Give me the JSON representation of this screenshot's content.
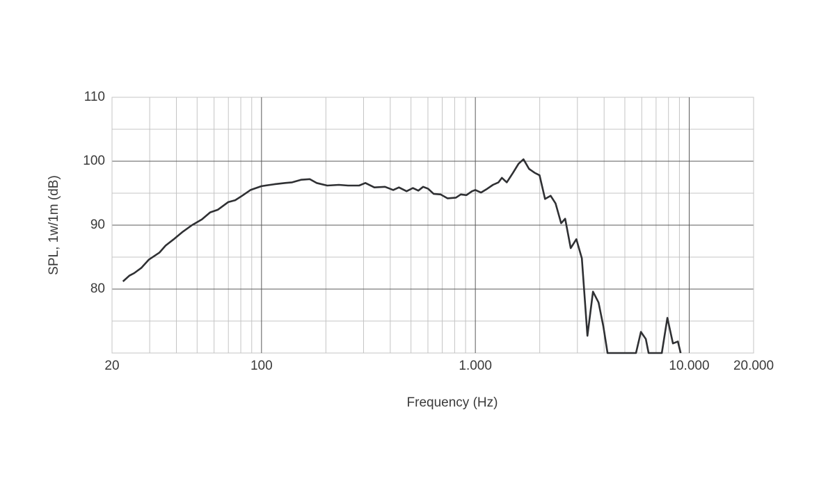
{
  "chart_data": {
    "type": "line",
    "x_label": "Frequency (Hz)",
    "y_label": "SPL, 1w/1m (dB)",
    "x_scale": "log",
    "grid": true,
    "color": "#2f3033",
    "xlim": [
      20,
      20000
    ],
    "xticks": [
      20,
      100,
      {
        "value": 1000,
        "label": "1.000"
      },
      {
        "value": 10000,
        "label": "10.000"
      },
      {
        "value": 20000,
        "label": "20.000"
      }
    ],
    "ylim": [
      70,
      110
    ],
    "yticks": [
      80,
      90,
      100,
      110
    ],
    "x": [
      22.5,
      24.1,
      25.4,
      27.4,
      29.7,
      33.3,
      35.6,
      38.9,
      42.6,
      47.3,
      52.6,
      57.5,
      62.4,
      69.8,
      75.3,
      81.2,
      88.8,
      100,
      115,
      129,
      139,
      153,
      168,
      181,
      203,
      230,
      254,
      286,
      306,
      337,
      378,
      413,
      439,
      477,
      510,
      541,
      570,
      601,
      638,
      688,
      741,
      811,
      855,
      908,
      964,
      1000,
      1062,
      1137,
      1208,
      1283,
      1331,
      1403,
      1500,
      1592,
      1679,
      1782,
      1892,
      1996,
      2118,
      2248,
      2371,
      2518,
      2630,
      2793,
      2966,
      3148,
      3342,
      3548,
      3767,
      3972,
      4150,
      5640,
      5944,
      6266,
      6456,
      7447,
      7907,
      8395,
      8851,
      9120
    ],
    "values": [
      81.2,
      82.1,
      82.5,
      83.3,
      84.6,
      85.7,
      86.8,
      87.8,
      88.9,
      90,
      90.9,
      92,
      92.4,
      93.6,
      93.9,
      94.6,
      95.5,
      96.1,
      96.4,
      96.6,
      96.7,
      97.1,
      97.2,
      96.6,
      96.2,
      96.3,
      96.2,
      96.2,
      96.6,
      95.9,
      96,
      95.5,
      95.9,
      95.3,
      95.8,
      95.4,
      96,
      95.7,
      94.9,
      94.8,
      94.2,
      94.3,
      94.8,
      94.7,
      95.3,
      95.5,
      95.1,
      95.7,
      96.3,
      96.7,
      97.4,
      96.7,
      98.2,
      99.6,
      100.3,
      98.8,
      98.2,
      97.8,
      94.1,
      94.6,
      93.4,
      90.3,
      91,
      86.4,
      87.8,
      84.8,
      72.7,
      79.6,
      77.9,
      74.1,
      70,
      70,
      73.3,
      72.2,
      70,
      70,
      75.5,
      71.5,
      71.8,
      70
    ]
  }
}
